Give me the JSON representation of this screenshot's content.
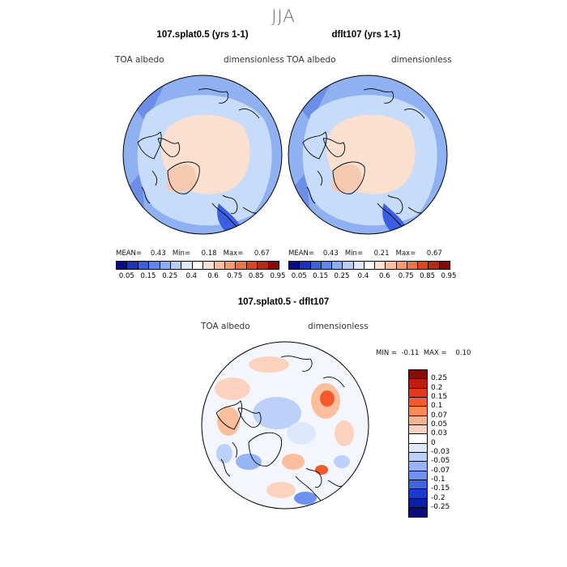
{
  "season": "JJA",
  "panels": [
    {
      "title": "107.splat0.5 (yrs 1-1)",
      "var": "TOA albedo",
      "units": "dimensionless",
      "mean_label": "MEAN=",
      "mean": "0.43",
      "min_label": "Min=",
      "min": "0.18",
      "max_label": "Max=",
      "max": "0.67"
    },
    {
      "title": "dflt107 (yrs 1-1)",
      "var": "TOA albedo",
      "units": "dimensionless",
      "mean_label": "MEAN=",
      "mean": "0.43",
      "min_label": "Min=",
      "min": "0.21",
      "max_label": "Max=",
      "max": "0.67"
    }
  ],
  "albedo_colorbar": {
    "ticks": [
      "0.05",
      "0.15",
      "0.25",
      "0.4",
      "0.6",
      "0.75",
      "0.85",
      "0.95"
    ],
    "colors": [
      "#0a0a8c",
      "#1a33c2",
      "#3a5fe0",
      "#5c86f0",
      "#89aef8",
      "#b6cdfa",
      "#dde8fb",
      "#ffffff",
      "#fde0cf",
      "#fbbf9e",
      "#f79a72",
      "#f3704a",
      "#e3441f",
      "#bd2712",
      "#8a0a06"
    ]
  },
  "diff_panel": {
    "title": "107.splat0.5 - dflt107",
    "var": "TOA albedo",
    "units": "dimensionless",
    "min_label": "MIN =",
    "min": "-0.11",
    "max_label": "MAX =",
    "max": "0.10"
  },
  "diff_colorbar": {
    "ticks": [
      "0.25",
      "0.2",
      "0.15",
      "0.1",
      "0.07",
      "0.05",
      "0.03",
      "0",
      "-0.03",
      "-0.05",
      "-0.07",
      "-0.1",
      "-0.15",
      "-0.2",
      "-0.25"
    ],
    "colors": [
      "#8a0a06",
      "#c01d0c",
      "#e2391a",
      "#f65a2c",
      "#fb8a58",
      "#fcb290",
      "#fdd3bf",
      "#ffffff",
      "#dde8fb",
      "#bcd1fa",
      "#97b5f6",
      "#6e92ef",
      "#3e66e3",
      "#1a3ac9",
      "#0d1ea9",
      "#0a0a7c"
    ]
  },
  "map_colors": {
    "land_outline": "#000000",
    "albedo_ocean": "#8fb1f1",
    "albedo_ocean_dark": "#6b8fe6",
    "albedo_mid": "#c7dcfb",
    "albedo_arctic": "#fbe0d0",
    "diff_base": "#f3f6fd"
  }
}
